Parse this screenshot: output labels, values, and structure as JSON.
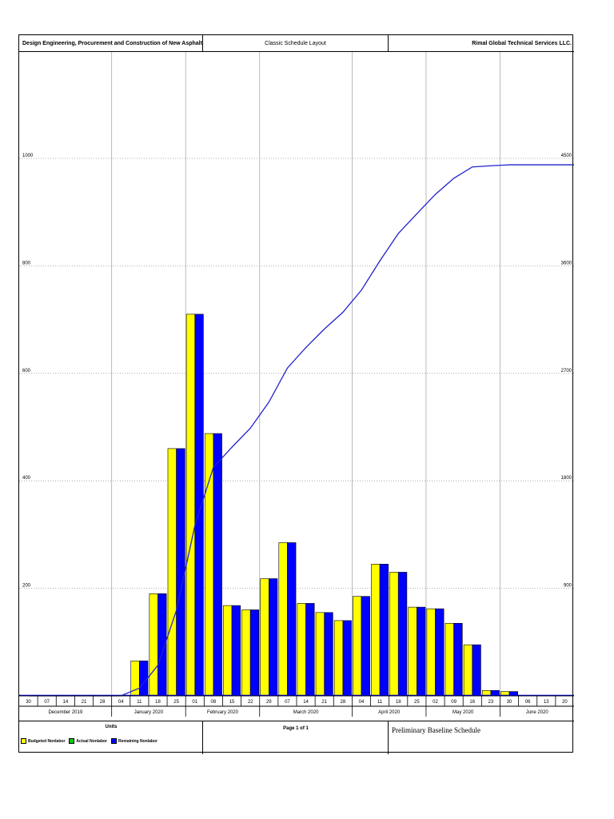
{
  "header": {
    "project": "Design Engineering, Procurement and Construction of New Asphalt Road",
    "layout": "Classic Schedule Layout",
    "company": "Rimal Global Technical Services LLC."
  },
  "footer": {
    "units_title": "Units",
    "legend": [
      {
        "label": "Budgeted Nonlabor",
        "color": "#ffff00"
      },
      {
        "label": "Actual Nonlabor",
        "color": "#00cc00"
      },
      {
        "label": "Remaining Nonlabor",
        "color": "#0000ff"
      }
    ],
    "page": "Page 1 of 1",
    "schedule_name": "Preliminary Baseline Schedule"
  },
  "colors": {
    "budgeted": "#ffff00",
    "remaining": "#0000ff",
    "cumulative": "#2222cc"
  },
  "chart_data": {
    "type": "bar",
    "weeks": [
      "30",
      "07",
      "14",
      "21",
      "28",
      "04",
      "11",
      "18",
      "25",
      "01",
      "08",
      "15",
      "22",
      "29",
      "07",
      "14",
      "21",
      "28",
      "04",
      "11",
      "18",
      "25",
      "02",
      "09",
      "16",
      "23",
      "30",
      "06",
      "13",
      "20"
    ],
    "months": [
      {
        "label": "December 2019",
        "weeks": 5
      },
      {
        "label": "January 2020",
        "weeks": 4
      },
      {
        "label": "February 2020",
        "weeks": 4
      },
      {
        "label": "March 2020",
        "weeks": 5
      },
      {
        "label": "April 2020",
        "weeks": 4
      },
      {
        "label": "May 2020",
        "weeks": 4
      },
      {
        "label": "June 2020",
        "weeks": 4
      }
    ],
    "series": [
      {
        "name": "Budgeted Nonlabor",
        "values": [
          0,
          0,
          0,
          0,
          0,
          0,
          65,
          190,
          460,
          710,
          488,
          168,
          160,
          218,
          285,
          172,
          155,
          140,
          185,
          245,
          230,
          165,
          162,
          135,
          95,
          10,
          8,
          0,
          0,
          0
        ]
      },
      {
        "name": "Remaining Nonlabor",
        "values": [
          0,
          0,
          0,
          0,
          0,
          0,
          65,
          190,
          460,
          710,
          488,
          168,
          160,
          218,
          285,
          172,
          155,
          140,
          185,
          245,
          230,
          165,
          162,
          135,
          95,
          10,
          8,
          0,
          0,
          0
        ]
      }
    ],
    "cumulative": [
      0,
      0,
      0,
      0,
      0,
      0,
      65,
      255,
      715,
      1425,
      1913,
      2081,
      2241,
      2459,
      2744,
      2916,
      3071,
      3211,
      3396,
      3641,
      3871,
      4036,
      4198,
      4333,
      4428,
      4438,
      4446,
      4446,
      4446,
      4446
    ],
    "y_left_ticks": [
      "200",
      "400",
      "600",
      "800",
      "1000"
    ],
    "y_right_ticks": [
      "900",
      "1800",
      "2700",
      "3600",
      "4500"
    ],
    "ylim_left": [
      0,
      1000
    ],
    "ylim_right": [
      0,
      4500
    ],
    "grid": true
  }
}
